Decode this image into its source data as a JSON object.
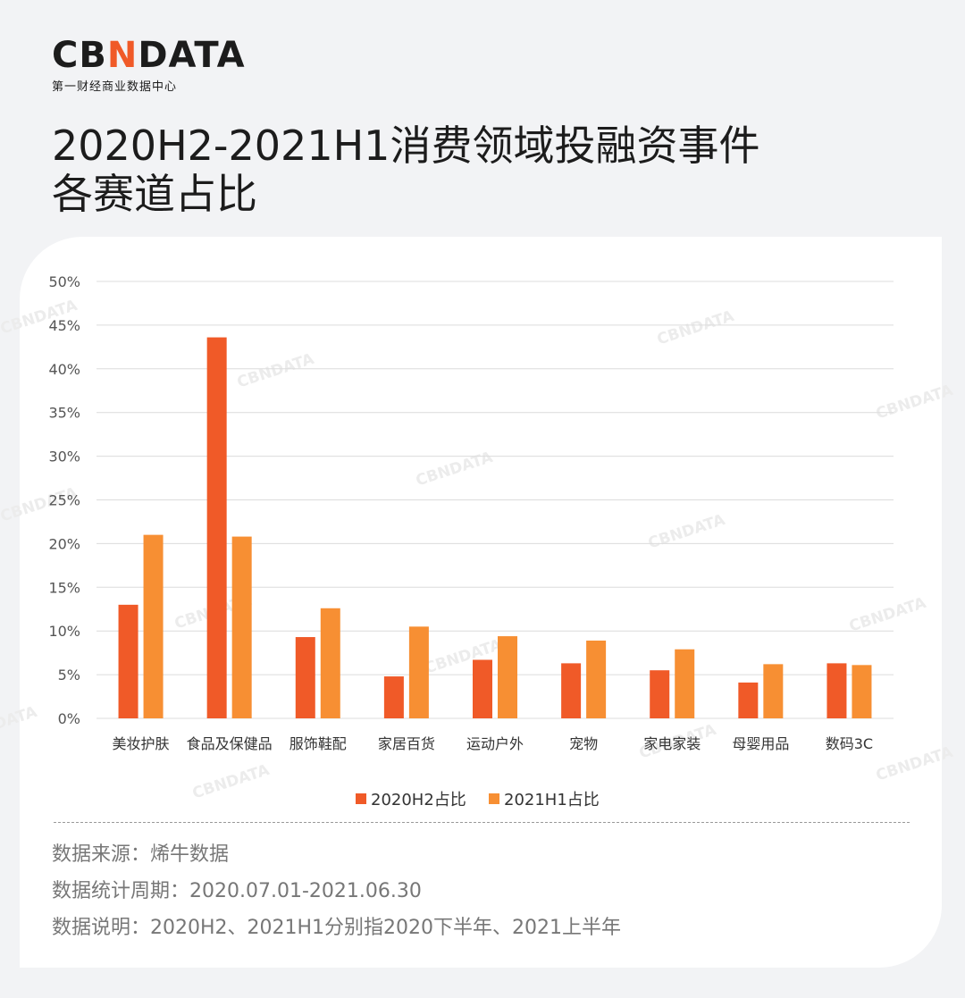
{
  "brand": {
    "logo_pre": "CB",
    "logo_accent": "N",
    "logo_post": "DATA",
    "subtitle": "第一财经商业数据中心"
  },
  "header": {
    "title_line1": "2020H2-2021H1消费领域投融资事件",
    "title_line2": "各赛道占比"
  },
  "colors": {
    "series1": "#f05a28",
    "series2": "#f78f33",
    "grid": "#dcdcdc",
    "axis_text": "#555555"
  },
  "watermark": "CBNDATA",
  "chart_data": {
    "type": "bar",
    "categories": [
      "美妆护肤",
      "食品及保健品",
      "服饰鞋配",
      "家居百货",
      "运动户外",
      "宠物",
      "家电家装",
      "母婴用品",
      "数码3C"
    ],
    "series": [
      {
        "name": "2020H2占比",
        "values": [
          13.0,
          43.6,
          9.3,
          4.8,
          6.7,
          6.3,
          5.5,
          4.1,
          6.3
        ]
      },
      {
        "name": "2021H1占比",
        "values": [
          21.0,
          20.8,
          12.6,
          10.5,
          9.4,
          8.9,
          7.9,
          6.2,
          6.1
        ]
      }
    ],
    "ylim": [
      0,
      50
    ],
    "yticks": [
      "0%",
      "5%",
      "10%",
      "15%",
      "20%",
      "25%",
      "30%",
      "35%",
      "40%",
      "45%",
      "50%"
    ],
    "grid": true,
    "legend": "bottom-center",
    "xlabel": "",
    "ylabel": ""
  },
  "notes": {
    "source": "数据来源：烯牛数据",
    "period": "数据统计周期：2020.07.01-2021.06.30",
    "explain": "数据说明：2020H2、2021H1分别指2020下半年、2021上半年"
  }
}
